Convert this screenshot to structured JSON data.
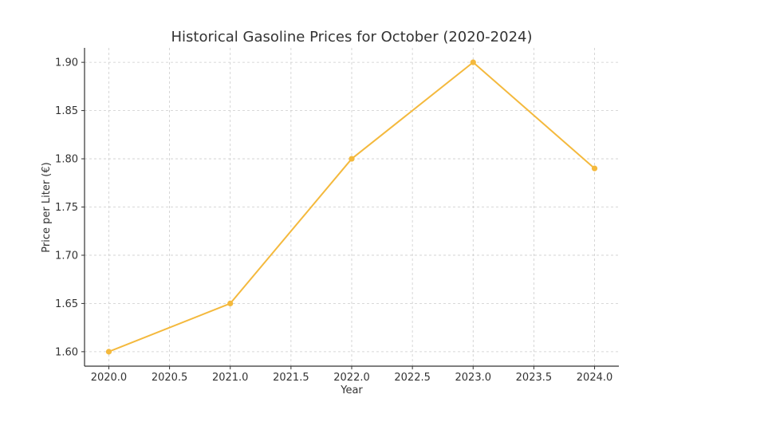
{
  "chart_data": {
    "type": "line",
    "title": "Historical Gasoline Prices for October (2020-2024)",
    "xlabel": "Year",
    "ylabel": "Price per Liter (€)",
    "xlim": [
      2019.8,
      2024.2
    ],
    "ylim": [
      1.585,
      1.915
    ],
    "x_ticks": [
      2020.0,
      2020.5,
      2021.0,
      2021.5,
      2022.0,
      2022.5,
      2023.0,
      2023.5,
      2024.0
    ],
    "x_tick_labels": [
      "2020.0",
      "2020.5",
      "2021.0",
      "2021.5",
      "2022.0",
      "2022.5",
      "2023.0",
      "2023.5",
      "2024.0"
    ],
    "y_ticks": [
      1.6,
      1.65,
      1.7,
      1.75,
      1.8,
      1.85,
      1.9
    ],
    "y_tick_labels": [
      "1.60",
      "1.65",
      "1.70",
      "1.75",
      "1.80",
      "1.85",
      "1.90"
    ],
    "grid": true,
    "color": "#f4b93d",
    "series": [
      {
        "x": [
          2020,
          2021,
          2022,
          2023,
          2024
        ],
        "values": [
          1.6,
          1.65,
          1.8,
          1.9,
          1.79
        ]
      }
    ]
  }
}
